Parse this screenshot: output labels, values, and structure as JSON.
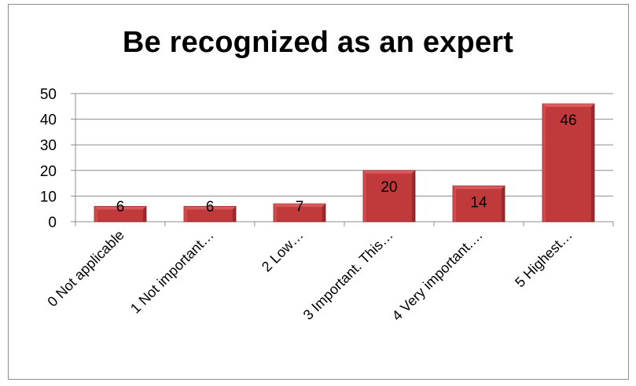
{
  "chart_data": {
    "type": "bar",
    "title": "Be recognized as an expert",
    "categories": [
      "0 Not applicable",
      "1 Not important…",
      "2 Low…",
      "3 Important. This…",
      "4 Very important.…",
      "5 Highest…"
    ],
    "values": [
      6,
      6,
      7,
      20,
      14,
      46
    ],
    "ylim": [
      0,
      50
    ],
    "yticks": [
      0,
      10,
      20,
      30,
      40,
      50
    ],
    "xlabel": "",
    "ylabel": "",
    "grid": true,
    "legend": "none",
    "bar_color": "#c0393b",
    "bar_top_color": "#d9595b",
    "bar_side_color": "#8e1f22"
  }
}
